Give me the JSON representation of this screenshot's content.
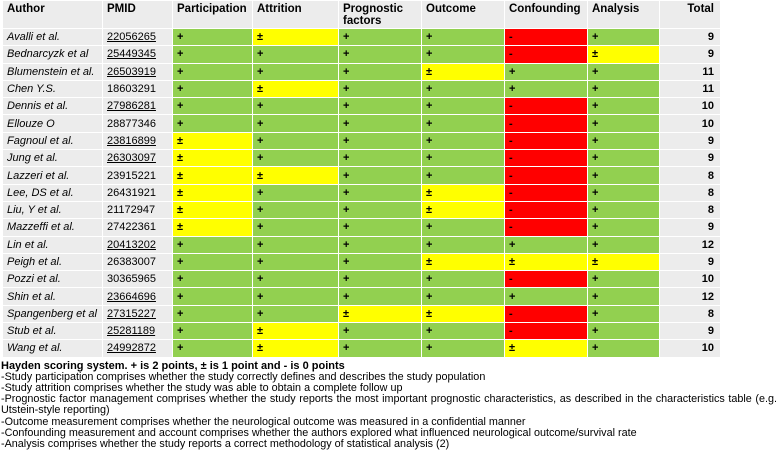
{
  "colors": {
    "positive": "#92d050",
    "partial": "#ffff00",
    "negative": "#ff0000",
    "band": "#ececec"
  },
  "table": {
    "headers": [
      "Author",
      "PMID",
      "Participation",
      "Attrition",
      "Prognostic factors",
      "Outcome",
      "Confounding",
      "Analysis",
      "Total"
    ],
    "rows": [
      {
        "author": "Avalli et al.",
        "pmid": "22056265",
        "pmid_link": true,
        "scores": [
          "+",
          "±",
          "+",
          "+",
          "-",
          "+"
        ],
        "total": 9
      },
      {
        "author": "Bednarcyzk et al",
        "pmid": "25449345",
        "pmid_link": true,
        "scores": [
          "+",
          "+",
          "+",
          "+",
          "-",
          "±"
        ],
        "total": 9
      },
      {
        "author": "Blumenstein et al.",
        "pmid": "26503919",
        "pmid_link": true,
        "scores": [
          "+",
          "+",
          "+",
          "±",
          "+",
          "+"
        ],
        "total": 11
      },
      {
        "author": "Chen Y.S.",
        "pmid": "18603291",
        "pmid_link": false,
        "scores": [
          "+",
          "±",
          "+",
          "+",
          "+",
          "+"
        ],
        "total": 11
      },
      {
        "author": "Dennis et al.",
        "pmid": "27986281",
        "pmid_link": true,
        "scores": [
          "+",
          "+",
          "+",
          "+",
          "-",
          "+"
        ],
        "total": 10
      },
      {
        "author": "Ellouze O",
        "pmid": "28877346",
        "pmid_link": false,
        "scores": [
          "+",
          "+",
          "+",
          "+",
          "-",
          "+"
        ],
        "total": 10
      },
      {
        "author": "Fagnoul et al.",
        "pmid": "23816899",
        "pmid_link": true,
        "scores": [
          "±",
          "+",
          "+",
          "+",
          "-",
          "+"
        ],
        "total": 9
      },
      {
        "author": "Jung et al.",
        "pmid": "26303097",
        "pmid_link": true,
        "scores": [
          "±",
          "+",
          "+",
          "+",
          "-",
          "+"
        ],
        "total": 9
      },
      {
        "author": "Lazzeri et al.",
        "pmid": "23915221",
        "pmid_link": false,
        "scores": [
          "±",
          "±",
          "+",
          "+",
          "-",
          "+"
        ],
        "total": 8
      },
      {
        "author": "Lee, DS et al.",
        "pmid": "26431921",
        "pmid_link": false,
        "scores": [
          "±",
          "+",
          "+",
          "±",
          "-",
          "+"
        ],
        "total": 8
      },
      {
        "author": "Liu, Y et al.",
        "pmid": "21172947",
        "pmid_link": false,
        "scores": [
          "±",
          "+",
          "+",
          "±",
          "-",
          "+"
        ],
        "total": 8
      },
      {
        "author": "Mazzeffi et al.",
        "pmid": "27422361",
        "pmid_link": false,
        "scores": [
          "±",
          "+",
          "+",
          "+",
          "-",
          "+"
        ],
        "total": 9
      },
      {
        "author": "Lin et al.",
        "pmid": "20413202",
        "pmid_link": true,
        "scores": [
          "+",
          "+",
          "+",
          "+",
          "+",
          "+"
        ],
        "total": 12
      },
      {
        "author": "Peigh et al.",
        "pmid": "26383007",
        "pmid_link": false,
        "scores": [
          "+",
          "+",
          "+",
          "±",
          "±",
          "±"
        ],
        "total": 9
      },
      {
        "author": "Pozzi et al.",
        "pmid": "30365965",
        "pmid_link": false,
        "scores": [
          "+",
          "+",
          "+",
          "+",
          "-",
          "+"
        ],
        "total": 10
      },
      {
        "author": "Shin et al.",
        "pmid": "23664696",
        "pmid_link": true,
        "scores": [
          "+",
          "+",
          "+",
          "+",
          "+",
          "+"
        ],
        "total": 12
      },
      {
        "author": "Spangenberg et al",
        "pmid": "27315227",
        "pmid_link": true,
        "scores": [
          "+",
          "+",
          "±",
          "±",
          "-",
          "+"
        ],
        "total": 8
      },
      {
        "author": "Stub et al.",
        "pmid": "25281189",
        "pmid_link": true,
        "scores": [
          "+",
          "±",
          "+",
          "+",
          "-",
          "+"
        ],
        "total": 9
      },
      {
        "author": "Wang et al.",
        "pmid": "24992872",
        "pmid_link": true,
        "scores": [
          "+",
          "±",
          "+",
          "+",
          "±",
          "+"
        ],
        "total": 10
      }
    ]
  },
  "legend": {
    "title": "Hayden scoring system. + is 2 points, ± is 1 point and - is 0 points",
    "notes": [
      "-Study participation comprises whether the study correctly defines and describes the study population",
      "-Study attrition comprises whether the study was able to obtain a complete follow up",
      "-Prognostic factor management comprises whether the study reports the most important prognostic characteristics, as described in the characteristics table (e.g. Utstein-style reporting)",
      "-Outcome measurement comprises whether the neurological outcome was measured in a confidential manner",
      "-Confounding measurement and account comprises whether the authors explored what influenced neurological outcome/survival rate",
      "-Analysis comprises whether the study reports a correct methodology of statistical analysis (2)"
    ]
  }
}
